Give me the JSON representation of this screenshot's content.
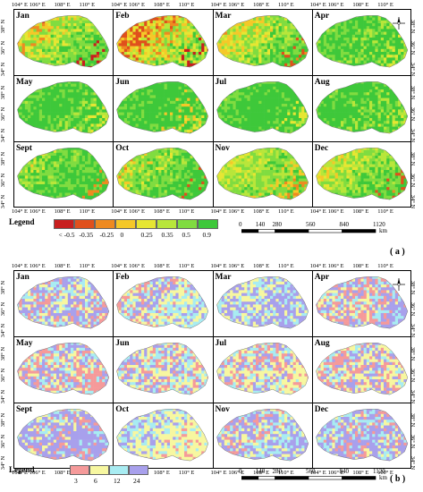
{
  "panels": [
    {
      "id": "a",
      "tag": "( a )",
      "months": [
        "Jan",
        "Feb",
        "Mar",
        "Apr",
        "May",
        "Jun",
        "Jul",
        "Aug",
        "Sept",
        "Oct",
        "Nov",
        "Dec"
      ],
      "legend": {
        "title": "Legend",
        "labels": [
          "< -0.5",
          "-0.35",
          "-0.25",
          "0",
          "0.25",
          "0.35",
          "0.5",
          "0.9"
        ],
        "colors": [
          "#c81e1e",
          "#e0501c",
          "#ee8a20",
          "#f5c828",
          "#e6e632",
          "#b8e63a",
          "#80dc40",
          "#3ec83a"
        ]
      }
    },
    {
      "id": "b",
      "tag": "( b )",
      "months": [
        "Jan",
        "Feb",
        "Mar",
        "Apr",
        "May",
        "Jun",
        "Jul",
        "Aug",
        "Sept",
        "Oct",
        "Nov",
        "Dec"
      ],
      "legend": {
        "title": "Legend",
        "labels": [
          "3",
          "6",
          "12",
          "24"
        ],
        "colors": [
          "#f59a9a",
          "#f7f7a0",
          "#a8ecf2",
          "#a8a0ec"
        ]
      }
    }
  ],
  "axes": {
    "x_ticks": [
      "104° E",
      "106° E",
      "108° E",
      "110° E"
    ],
    "y_ticks": [
      "38° N",
      "36° N",
      "34° N"
    ]
  },
  "scale": {
    "labels": [
      "0",
      "140",
      "280",
      "560",
      "840",
      "1120"
    ],
    "unit": "km"
  },
  "compass": {
    "label": "N"
  }
}
